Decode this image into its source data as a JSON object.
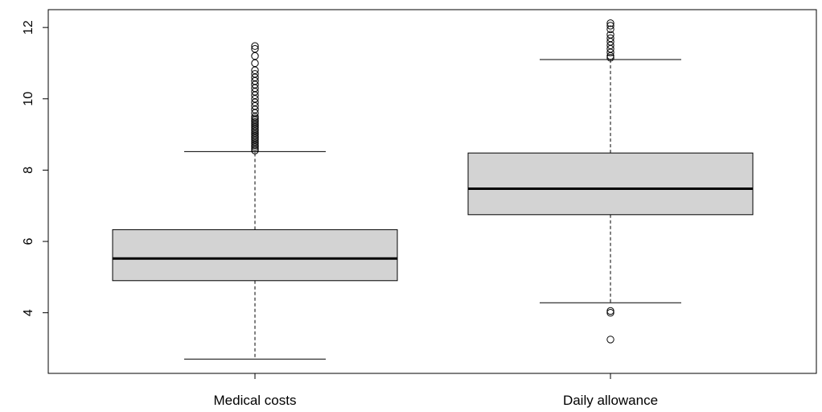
{
  "chart_data": {
    "type": "boxplot",
    "title": "",
    "xlabel": "",
    "ylabel": "",
    "ylim": [
      2.3,
      12.5
    ],
    "yticks": [
      4,
      6,
      8,
      10,
      12
    ],
    "grid": false,
    "legend": "none",
    "box_fill": "#d3d3d3",
    "stroke": "#000000",
    "categories": [
      "Medical costs",
      "Daily allowance"
    ],
    "boxes": [
      {
        "category": "Medical costs",
        "whisker_low": 2.7,
        "q1": 4.9,
        "median": 5.52,
        "q3": 6.33,
        "whisker_high": 8.52,
        "outliers": [
          8.55,
          8.6,
          8.65,
          8.7,
          8.75,
          8.8,
          8.85,
          8.9,
          8.95,
          9.0,
          9.05,
          9.1,
          9.15,
          9.2,
          9.25,
          9.3,
          9.35,
          9.4,
          9.45,
          9.5,
          9.6,
          9.7,
          9.8,
          9.9,
          10.0,
          10.1,
          10.2,
          10.3,
          10.4,
          10.5,
          10.6,
          10.7,
          10.8,
          11.0,
          11.2,
          11.4,
          11.48
        ]
      },
      {
        "category": "Daily allowance",
        "whisker_low": 4.28,
        "q1": 6.75,
        "median": 7.48,
        "q3": 8.48,
        "whisker_high": 11.1,
        "outliers": [
          3.25,
          4.0,
          4.05,
          11.15,
          11.2,
          11.3,
          11.4,
          11.5,
          11.6,
          11.7,
          11.8,
          11.95,
          12.05,
          12.12
        ]
      }
    ]
  }
}
